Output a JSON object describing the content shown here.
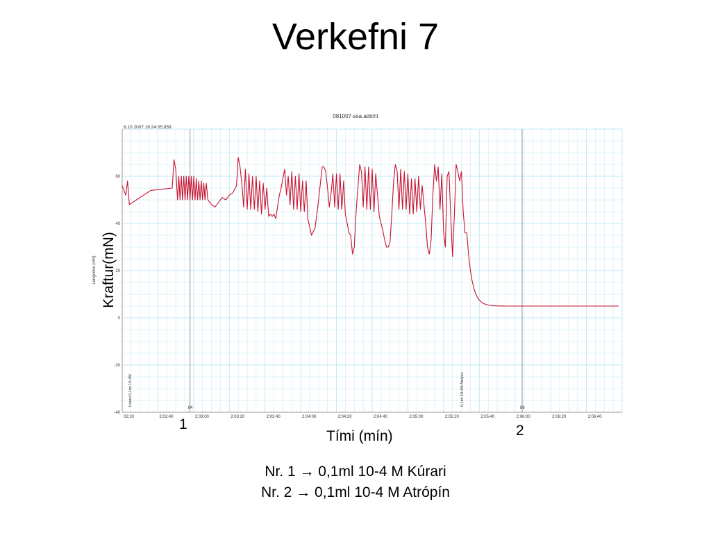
{
  "slide": {
    "title": "Verkefni 7",
    "ylabel": "Kraftur(mN)",
    "xlabel": "Tími (mín)",
    "marker_1": "1",
    "marker_2": "2",
    "note_1": "Nr. 1 → 0,1ml 10-4 M Kúrari",
    "note_2": "Nr. 2 → 0,1ml 10-4 M Atrópín"
  },
  "colors": {
    "trace": "#c8102e",
    "grid": "#bfe8f5",
    "marker_line": "#7a8a96",
    "axis_text": "#333333"
  },
  "chart_data": {
    "type": "line",
    "title": "081007-ssa.adicht",
    "timestamp": "8.10.2007 16:24:05,859",
    "ylabel": "Lengvdon (mN)",
    "ylim": [
      -40,
      80
    ],
    "yticks": [
      60,
      40,
      20,
      0,
      -20,
      -40
    ],
    "xlim_seconds": [
      7340,
      7620
    ],
    "xticks": [
      {
        "t": 7340,
        "label": "02:20"
      },
      {
        "t": 7360,
        "label": "2:02:40"
      },
      {
        "t": 7380,
        "label": "2:03:00"
      },
      {
        "t": 7400,
        "label": "2:03:20"
      },
      {
        "t": 7420,
        "label": "2:03:40"
      },
      {
        "t": 7440,
        "label": "2:04:00"
      },
      {
        "t": 7460,
        "label": "2:04:20"
      },
      {
        "t": 7480,
        "label": "2:04:40"
      },
      {
        "t": 7500,
        "label": "2:05:00"
      },
      {
        "t": 7520,
        "label": "2:05:20"
      },
      {
        "t": 7540,
        "label": "2:05:40"
      },
      {
        "t": 7560,
        "label": "2:06:00"
      },
      {
        "t": 7580,
        "label": "2:06:20"
      },
      {
        "t": 7600,
        "label": "2:06:40"
      }
    ],
    "events": [
      {
        "t": 7378,
        "number": "84",
        "comment": "Kúrari 0,1ml 10-4M",
        "comment_t": 7345
      },
      {
        "t": 7564,
        "number": "86",
        "comment": "0,1ml 10-4M Atrópín",
        "comment_t": 7531
      }
    ],
    "series": [
      {
        "points": [
          [
            7340,
            56
          ],
          [
            7342,
            52
          ],
          [
            7343,
            58
          ],
          [
            7344,
            48
          ],
          [
            7346,
            49
          ],
          [
            7348,
            50
          ],
          [
            7350,
            51
          ],
          [
            7352,
            52
          ],
          [
            7354,
            53
          ],
          [
            7356,
            54
          ],
          [
            7368,
            55
          ],
          [
            7369,
            67
          ],
          [
            7370,
            63
          ],
          [
            7371,
            50
          ],
          [
            7371.7,
            60
          ],
          [
            7372.4,
            50
          ],
          [
            7373.1,
            60
          ],
          [
            7373.8,
            50
          ],
          [
            7374.5,
            60
          ],
          [
            7375.2,
            50
          ],
          [
            7375.9,
            60
          ],
          [
            7376.6,
            50
          ],
          [
            7377.3,
            60
          ],
          [
            7378,
            50
          ],
          [
            7378.7,
            60
          ],
          [
            7379.4,
            50
          ],
          [
            7380.1,
            60
          ],
          [
            7380.8,
            50
          ],
          [
            7381.5,
            59
          ],
          [
            7382.2,
            50
          ],
          [
            7382.9,
            58
          ],
          [
            7383.6,
            50
          ],
          [
            7384.3,
            58
          ],
          [
            7385,
            50
          ],
          [
            7385.7,
            57
          ],
          [
            7386.4,
            50
          ],
          [
            7387.1,
            57
          ],
          [
            7388,
            50
          ],
          [
            7390,
            48
          ],
          [
            7392,
            47
          ],
          [
            7394,
            49
          ],
          [
            7396,
            51
          ],
          [
            7398,
            50
          ],
          [
            7400,
            52
          ],
          [
            7402,
            53
          ],
          [
            7404,
            56
          ],
          [
            7405,
            68
          ],
          [
            7406,
            64
          ],
          [
            7407,
            57
          ],
          [
            7408,
            47
          ],
          [
            7409,
            63
          ],
          [
            7410,
            46
          ],
          [
            7411,
            61
          ],
          [
            7412,
            46
          ],
          [
            7413,
            60
          ],
          [
            7414,
            46
          ],
          [
            7415,
            60
          ],
          [
            7416,
            45
          ],
          [
            7417,
            58
          ],
          [
            7418,
            44
          ],
          [
            7419,
            57
          ],
          [
            7420,
            46
          ],
          [
            7421,
            55
          ],
          [
            7422,
            43
          ],
          [
            7423,
            44
          ],
          [
            7424,
            43
          ],
          [
            7425,
            44
          ],
          [
            7426,
            42
          ],
          [
            7427,
            47
          ],
          [
            7428,
            52
          ],
          [
            7429,
            55
          ],
          [
            7431,
            63
          ],
          [
            7432,
            52
          ],
          [
            7433,
            60
          ],
          [
            7434,
            48
          ],
          [
            7435,
            62
          ],
          [
            7436,
            46
          ],
          [
            7437,
            60
          ],
          [
            7438,
            46
          ],
          [
            7439,
            61
          ],
          [
            7440,
            45
          ],
          [
            7441,
            58
          ],
          [
            7442,
            45
          ],
          [
            7443,
            58
          ],
          [
            7444,
            42
          ],
          [
            7446,
            35
          ],
          [
            7448,
            38
          ],
          [
            7449,
            44
          ],
          [
            7450,
            50
          ],
          [
            7451,
            57
          ],
          [
            7452,
            64
          ],
          [
            7453,
            64
          ],
          [
            7454,
            62
          ],
          [
            7455,
            55
          ],
          [
            7456,
            47
          ],
          [
            7457,
            53
          ],
          [
            7458,
            61
          ],
          [
            7459,
            47
          ],
          [
            7460,
            61
          ],
          [
            7461,
            46
          ],
          [
            7462,
            61
          ],
          [
            7463,
            46
          ],
          [
            7464,
            58
          ],
          [
            7465,
            44
          ],
          [
            7466,
            40
          ],
          [
            7467,
            36
          ],
          [
            7468,
            35
          ],
          [
            7469,
            27
          ],
          [
            7470,
            30
          ],
          [
            7471,
            45
          ],
          [
            7472,
            55
          ],
          [
            7473,
            65
          ],
          [
            7474,
            62
          ],
          [
            7475,
            47
          ],
          [
            7476,
            64
          ],
          [
            7477,
            46
          ],
          [
            7478,
            64
          ],
          [
            7479,
            46
          ],
          [
            7480,
            63
          ],
          [
            7481,
            45
          ],
          [
            7482,
            61
          ],
          [
            7484,
            43
          ],
          [
            7486,
            37
          ],
          [
            7487,
            33
          ],
          [
            7488,
            30
          ],
          [
            7489,
            30
          ],
          [
            7490,
            32
          ],
          [
            7491,
            44
          ],
          [
            7492,
            58
          ],
          [
            7493,
            65
          ],
          [
            7494,
            62
          ],
          [
            7495,
            46
          ],
          [
            7496,
            63
          ],
          [
            7497,
            46
          ],
          [
            7498,
            62
          ],
          [
            7499,
            46
          ],
          [
            7500,
            61
          ],
          [
            7501,
            44
          ],
          [
            7502,
            59
          ],
          [
            7503,
            44
          ],
          [
            7504,
            59
          ],
          [
            7505,
            45
          ],
          [
            7506,
            60
          ],
          [
            7507,
            46
          ],
          [
            7508,
            56
          ],
          [
            7510,
            40
          ],
          [
            7511,
            30
          ],
          [
            7512,
            27
          ],
          [
            7513,
            33
          ],
          [
            7514,
            52
          ],
          [
            7515,
            65
          ],
          [
            7516,
            58
          ],
          [
            7517,
            64
          ],
          [
            7518,
            46
          ],
          [
            7519,
            61
          ],
          [
            7520,
            36
          ],
          [
            7521,
            30
          ],
          [
            7522,
            60
          ],
          [
            7523,
            62
          ],
          [
            7524,
            44
          ],
          [
            7525,
            26
          ],
          [
            7526,
            43
          ],
          [
            7527,
            65
          ],
          [
            7528,
            62
          ],
          [
            7529,
            58
          ],
          [
            7530,
            62
          ],
          [
            7531,
            45
          ],
          [
            7532,
            36
          ],
          [
            7533,
            36
          ]
        ]
      }
    ]
  }
}
